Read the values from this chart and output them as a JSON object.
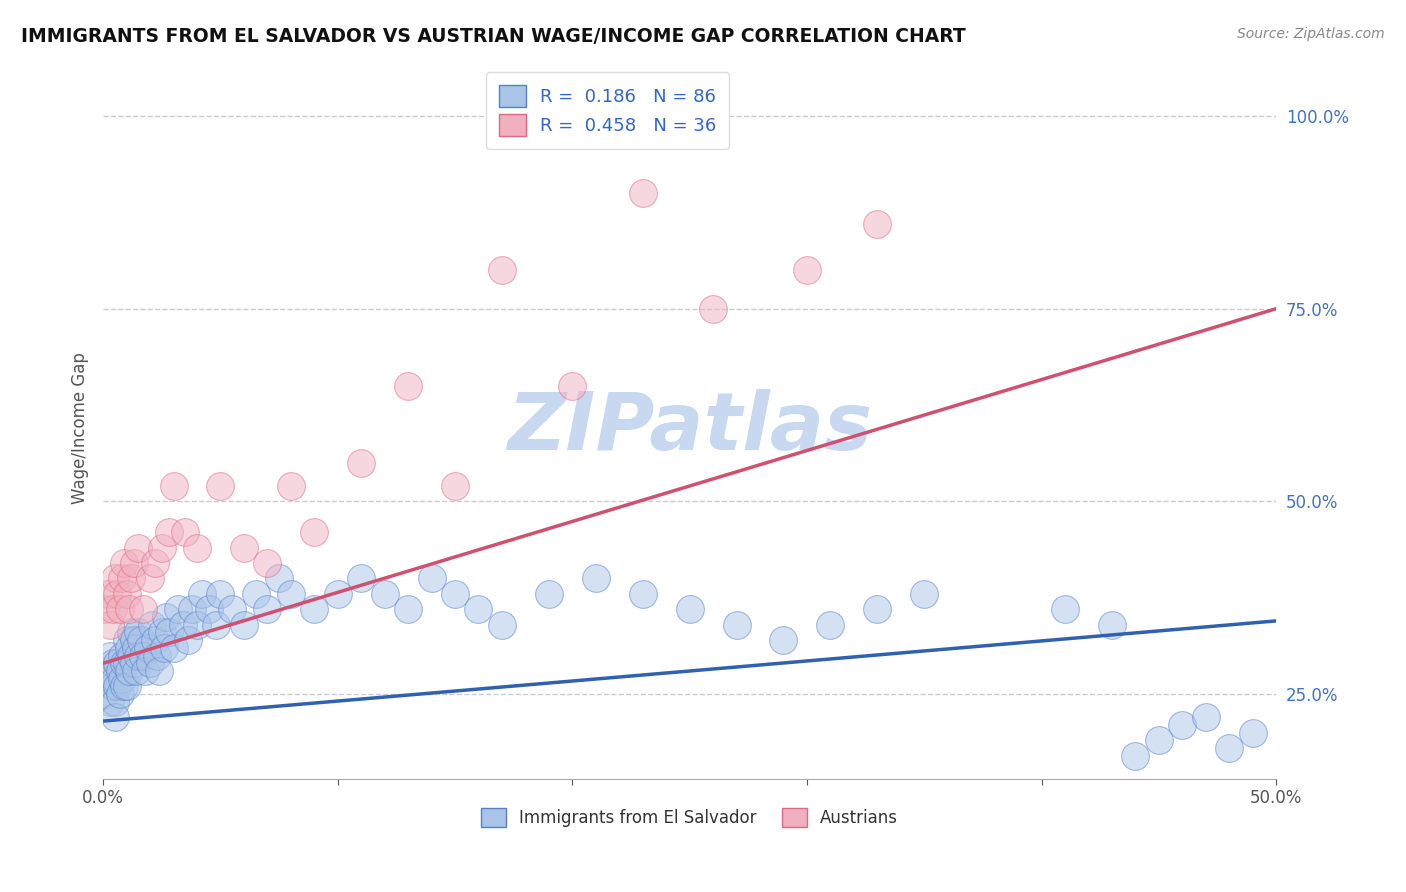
{
  "title": "IMMIGRANTS FROM EL SALVADOR VS AUSTRIAN WAGE/INCOME GAP CORRELATION CHART",
  "source_text": "Source: ZipAtlas.com",
  "ylabel": "Wage/Income Gap",
  "xlim": [
    0.0,
    0.5
  ],
  "ylim": [
    0.14,
    1.05
  ],
  "xtick_labels": [
    "0.0%",
    "",
    "",
    "",
    "",
    "50.0%"
  ],
  "xtick_vals": [
    0.0,
    0.1,
    0.2,
    0.3,
    0.4,
    0.5
  ],
  "ytick_labels": [
    "25.0%",
    "50.0%",
    "75.0%",
    "100.0%"
  ],
  "ytick_vals": [
    0.25,
    0.5,
    0.75,
    1.0
  ],
  "blue_fill": "#aac4e8",
  "pink_fill": "#f0b0c0",
  "blue_edge": "#5580cc",
  "pink_edge": "#e06880",
  "blue_line_color": "#3060b0",
  "pink_line_color": "#d05070",
  "legend_text_color": "#3366cc",
  "watermark": "ZIPatlas",
  "watermark_color": "#c8d8f0",
  "R_blue": 0.186,
  "N_blue": 86,
  "R_pink": 0.458,
  "N_pink": 36,
  "blue_line_x0": 0.0,
  "blue_line_y0": 0.215,
  "blue_line_x1": 0.5,
  "blue_line_y1": 0.345,
  "pink_line_x0": 0.0,
  "pink_line_y0": 0.29,
  "pink_line_x1": 0.5,
  "pink_line_y1": 0.75,
  "blue_x": [
    0.001,
    0.001,
    0.002,
    0.003,
    0.003,
    0.004,
    0.004,
    0.005,
    0.005,
    0.005,
    0.006,
    0.006,
    0.007,
    0.007,
    0.008,
    0.008,
    0.009,
    0.009,
    0.01,
    0.01,
    0.01,
    0.011,
    0.011,
    0.012,
    0.012,
    0.013,
    0.013,
    0.014,
    0.014,
    0.015,
    0.015,
    0.016,
    0.017,
    0.018,
    0.019,
    0.02,
    0.021,
    0.022,
    0.023,
    0.024,
    0.025,
    0.026,
    0.027,
    0.028,
    0.03,
    0.032,
    0.034,
    0.036,
    0.038,
    0.04,
    0.042,
    0.045,
    0.048,
    0.05,
    0.055,
    0.06,
    0.065,
    0.07,
    0.075,
    0.08,
    0.09,
    0.1,
    0.11,
    0.12,
    0.13,
    0.14,
    0.15,
    0.16,
    0.17,
    0.19,
    0.21,
    0.23,
    0.25,
    0.27,
    0.29,
    0.31,
    0.33,
    0.35,
    0.41,
    0.43,
    0.44,
    0.45,
    0.46,
    0.47,
    0.48,
    0.49
  ],
  "blue_y": [
    0.28,
    0.25,
    0.27,
    0.3,
    0.24,
    0.26,
    0.29,
    0.27,
    0.24,
    0.22,
    0.29,
    0.26,
    0.28,
    0.25,
    0.3,
    0.27,
    0.29,
    0.26,
    0.32,
    0.29,
    0.26,
    0.31,
    0.28,
    0.33,
    0.3,
    0.32,
    0.29,
    0.31,
    0.28,
    0.33,
    0.3,
    0.32,
    0.3,
    0.28,
    0.31,
    0.29,
    0.34,
    0.32,
    0.3,
    0.28,
    0.33,
    0.31,
    0.35,
    0.33,
    0.31,
    0.36,
    0.34,
    0.32,
    0.36,
    0.34,
    0.38,
    0.36,
    0.34,
    0.38,
    0.36,
    0.34,
    0.38,
    0.36,
    0.4,
    0.38,
    0.36,
    0.38,
    0.4,
    0.38,
    0.36,
    0.4,
    0.38,
    0.36,
    0.34,
    0.38,
    0.4,
    0.38,
    0.36,
    0.34,
    0.32,
    0.34,
    0.36,
    0.38,
    0.36,
    0.34,
    0.17,
    0.19,
    0.21,
    0.22,
    0.18,
    0.2
  ],
  "pink_x": [
    0.001,
    0.002,
    0.003,
    0.004,
    0.005,
    0.006,
    0.007,
    0.008,
    0.009,
    0.01,
    0.011,
    0.012,
    0.013,
    0.015,
    0.017,
    0.02,
    0.022,
    0.025,
    0.028,
    0.03,
    0.035,
    0.04,
    0.05,
    0.06,
    0.07,
    0.08,
    0.09,
    0.11,
    0.13,
    0.15,
    0.17,
    0.2,
    0.23,
    0.26,
    0.3,
    0.33
  ],
  "pink_y": [
    0.36,
    0.38,
    0.34,
    0.36,
    0.4,
    0.38,
    0.36,
    0.4,
    0.42,
    0.38,
    0.36,
    0.4,
    0.42,
    0.44,
    0.36,
    0.4,
    0.42,
    0.44,
    0.46,
    0.52,
    0.46,
    0.44,
    0.52,
    0.44,
    0.42,
    0.52,
    0.46,
    0.55,
    0.65,
    0.52,
    0.8,
    0.65,
    0.9,
    0.75,
    0.8,
    0.86
  ]
}
